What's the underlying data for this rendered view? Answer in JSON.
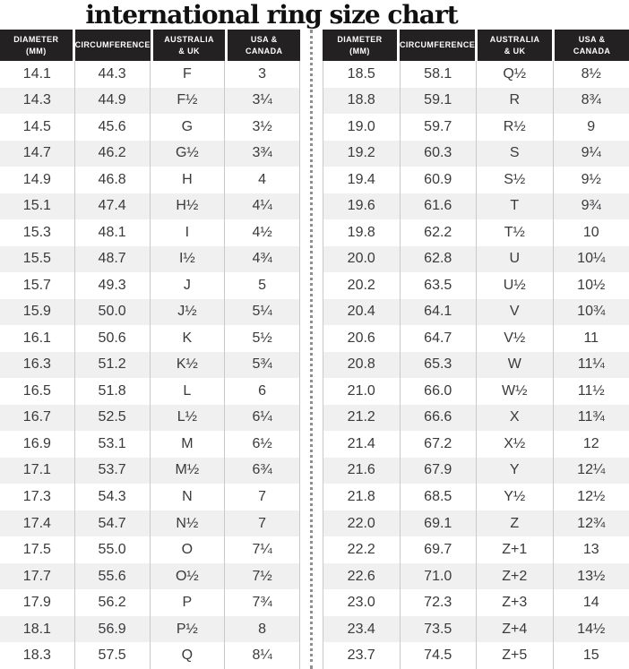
{
  "title": "international ring size chart",
  "colors": {
    "header_bg": "#242122",
    "header_text": "#ffffff",
    "alt_row": "#f0f0f1",
    "body_text": "#3a3a3c",
    "separator": "#c9c9cb",
    "divider_dots": "#8f8f8f",
    "title_color": "#111111"
  },
  "chart_data": {
    "type": "table",
    "title": "international ring size chart",
    "columns": [
      {
        "id": "diameter",
        "lines": [
          "DIAMETER",
          "(mm)"
        ]
      },
      {
        "id": "circumference",
        "lines": [
          "CIRCUMFERENCE"
        ]
      },
      {
        "id": "australia-uk",
        "lines": [
          "AUSTRALIA",
          "& UK"
        ]
      },
      {
        "id": "usa-canada",
        "lines": [
          "USA &",
          "CANADA"
        ]
      }
    ],
    "tables": [
      {
        "id": "left",
        "rows": [
          [
            "14.1",
            "44.3",
            "F",
            "3"
          ],
          [
            "14.3",
            "44.9",
            "F½",
            "3¼"
          ],
          [
            "14.5",
            "45.6",
            "G",
            "3½"
          ],
          [
            "14.7",
            "46.2",
            "G½",
            "3¾"
          ],
          [
            "14.9",
            "46.8",
            "H",
            "4"
          ],
          [
            "15.1",
            "47.4",
            "H½",
            "4¼"
          ],
          [
            "15.3",
            "48.1",
            "I",
            "4½"
          ],
          [
            "15.5",
            "48.7",
            "I½",
            "4¾"
          ],
          [
            "15.7",
            "49.3",
            "J",
            "5"
          ],
          [
            "15.9",
            "50.0",
            "J½",
            "5¼"
          ],
          [
            "16.1",
            "50.6",
            "K",
            "5½"
          ],
          [
            "16.3",
            "51.2",
            "K½",
            "5¾"
          ],
          [
            "16.5",
            "51.8",
            "L",
            "6"
          ],
          [
            "16.7",
            "52.5",
            "L½",
            "6¼"
          ],
          [
            "16.9",
            "53.1",
            "M",
            "6½"
          ],
          [
            "17.1",
            "53.7",
            "M½",
            "6¾"
          ],
          [
            "17.3",
            "54.3",
            "N",
            "7"
          ],
          [
            "17.4",
            "54.7",
            "N½",
            "7"
          ],
          [
            "17.5",
            "55.0",
            "O",
            "7¼"
          ],
          [
            "17.7",
            "55.6",
            "O½",
            "7½"
          ],
          [
            "17.9",
            "56.2",
            "P",
            "7¾"
          ],
          [
            "18.1",
            "56.9",
            "P½",
            "8"
          ],
          [
            "18.3",
            "57.5",
            "Q",
            "8¼"
          ]
        ]
      },
      {
        "id": "right",
        "rows": [
          [
            "18.5",
            "58.1",
            "Q½",
            "8½"
          ],
          [
            "18.8",
            "59.1",
            "R",
            "8¾"
          ],
          [
            "19.0",
            "59.7",
            "R½",
            "9"
          ],
          [
            "19.2",
            "60.3",
            "S",
            "9¼"
          ],
          [
            "19.4",
            "60.9",
            "S½",
            "9½"
          ],
          [
            "19.6",
            "61.6",
            "T",
            "9¾"
          ],
          [
            "19.8",
            "62.2",
            "T½",
            "10"
          ],
          [
            "20.0",
            "62.8",
            "U",
            "10¼"
          ],
          [
            "20.2",
            "63.5",
            "U½",
            "10½"
          ],
          [
            "20.4",
            "64.1",
            "V",
            "10¾"
          ],
          [
            "20.6",
            "64.7",
            "V½",
            "11"
          ],
          [
            "20.8",
            "65.3",
            "W",
            "11¼"
          ],
          [
            "21.0",
            "66.0",
            "W½",
            "11½"
          ],
          [
            "21.2",
            "66.6",
            "X",
            "11¾"
          ],
          [
            "21.4",
            "67.2",
            "X½",
            "12"
          ],
          [
            "21.6",
            "67.9",
            "Y",
            "12¼"
          ],
          [
            "21.8",
            "68.5",
            "Y½",
            "12½"
          ],
          [
            "22.0",
            "69.1",
            "Z",
            "12¾"
          ],
          [
            "22.2",
            "69.7",
            "Z+1",
            "13"
          ],
          [
            "22.6",
            "71.0",
            "Z+2",
            "13½"
          ],
          [
            "23.0",
            "72.3",
            "Z+3",
            "14"
          ],
          [
            "23.4",
            "73.5",
            "Z+4",
            "14½"
          ],
          [
            "23.7",
            "74.5",
            "Z+5",
            "15"
          ]
        ]
      }
    ]
  }
}
